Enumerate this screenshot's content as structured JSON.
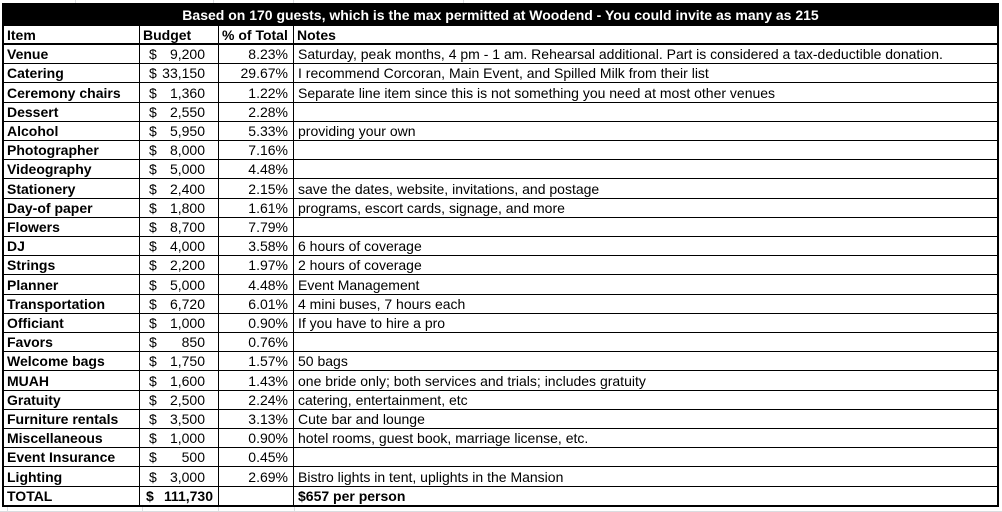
{
  "title": "Based on 170 guests, which is the max permitted at Woodend - You could invite as many as 215",
  "columns": {
    "item": "Item",
    "budget": "Budget",
    "pct": "% of Total",
    "notes": "Notes"
  },
  "currency_symbol": "$",
  "colors": {
    "title_bg": "#000000",
    "title_fg": "#ffffff",
    "border": "#000000",
    "gridline": "#dadce0"
  },
  "rows": [
    {
      "item": "Venue",
      "budget": "9,200",
      "pct": "8.23%",
      "notes": "Saturday, peak months, 4 pm - 1 am. Rehearsal additional. Part is considered a tax-deductible donation."
    },
    {
      "item": "Catering",
      "budget": "33,150",
      "pct": "29.67%",
      "notes": "I recommend Corcoran, Main Event, and Spilled Milk from their list"
    },
    {
      "item": "Ceremony chairs",
      "budget": "1,360",
      "pct": "1.22%",
      "notes": "Separate line item since this is not something you need at most other venues"
    },
    {
      "item": "Dessert",
      "budget": "2,550",
      "pct": "2.28%",
      "notes": ""
    },
    {
      "item": "Alcohol",
      "budget": "5,950",
      "pct": "5.33%",
      "notes": "providing your own"
    },
    {
      "item": "Photographer",
      "budget": "8,000",
      "pct": "7.16%",
      "notes": ""
    },
    {
      "item": "Videography",
      "budget": "5,000",
      "pct": "4.48%",
      "notes": ""
    },
    {
      "item": "Stationery",
      "budget": "2,400",
      "pct": "2.15%",
      "notes": "save the dates, website, invitations, and postage"
    },
    {
      "item": "Day-of paper",
      "budget": "1,800",
      "pct": "1.61%",
      "notes": "programs, escort cards, signage, and more"
    },
    {
      "item": "Flowers",
      "budget": "8,700",
      "pct": "7.79%",
      "notes": ""
    },
    {
      "item": "DJ",
      "budget": "4,000",
      "pct": "3.58%",
      "notes": "6 hours of coverage"
    },
    {
      "item": "Strings",
      "budget": "2,200",
      "pct": "1.97%",
      "notes": "2 hours of coverage"
    },
    {
      "item": "Planner",
      "budget": "5,000",
      "pct": "4.48%",
      "notes": "Event Management"
    },
    {
      "item": "Transportation",
      "budget": "6,720",
      "pct": "6.01%",
      "notes": "4 mini buses, 7 hours each"
    },
    {
      "item": "Officiant",
      "budget": "1,000",
      "pct": "0.90%",
      "notes": "If you have to hire a pro"
    },
    {
      "item": "Favors",
      "budget": "850",
      "pct": "0.76%",
      "notes": ""
    },
    {
      "item": "Welcome bags",
      "budget": "1,750",
      "pct": "1.57%",
      "notes": "50 bags"
    },
    {
      "item": "MUAH",
      "budget": "1,600",
      "pct": "1.43%",
      "notes": "one bride only; both services and trials; includes gratuity"
    },
    {
      "item": "Gratuity",
      "budget": "2,500",
      "pct": "2.24%",
      "notes": "catering, entertainment, etc"
    },
    {
      "item": "Furniture rentals",
      "budget": "3,500",
      "pct": "3.13%",
      "notes": "Cute bar and lounge"
    },
    {
      "item": "Miscellaneous",
      "budget": "1,000",
      "pct": "0.90%",
      "notes": "hotel rooms, guest book, marriage license, etc."
    },
    {
      "item": "Event Insurance",
      "budget": "500",
      "pct": "0.45%",
      "notes": ""
    },
    {
      "item": "Lighting",
      "budget": "3,000",
      "pct": "2.69%",
      "notes": "Bistro lights in tent, uplights in the Mansion"
    }
  ],
  "total": {
    "item": "TOTAL",
    "budget": "111,730",
    "pct": "",
    "notes": "$657 per person"
  }
}
